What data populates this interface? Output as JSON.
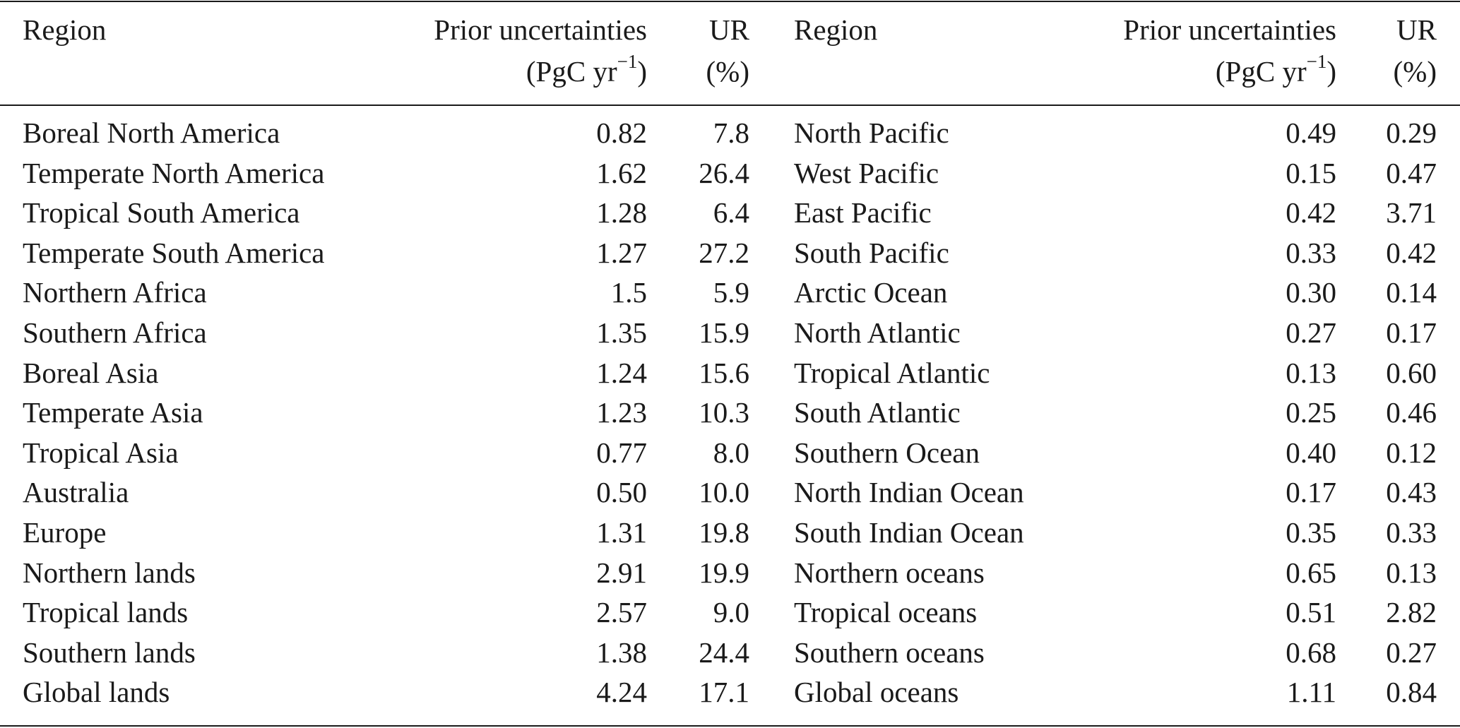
{
  "header": {
    "region": "Region",
    "prior_line1": "Prior uncertainties",
    "prior_line2_pre": "(PgC yr",
    "prior_line2_sup": "−1",
    "prior_line2_post": ")",
    "ur_line1": "UR",
    "ur_line2": "(%)"
  },
  "rows": [
    {
      "region1": "Boreal North America",
      "prior1": "0.82",
      "ur1": "7.8",
      "region2": "North Pacific",
      "prior2": "0.49",
      "ur2": "0.29"
    },
    {
      "region1": "Temperate North America",
      "prior1": "1.62",
      "ur1": "26.4",
      "region2": "West Pacific",
      "prior2": "0.15",
      "ur2": "0.47"
    },
    {
      "region1": "Tropical South America",
      "prior1": "1.28",
      "ur1": "6.4",
      "region2": "East Pacific",
      "prior2": "0.42",
      "ur2": "3.71"
    },
    {
      "region1": "Temperate South America",
      "prior1": "1.27",
      "ur1": "27.2",
      "region2": "South Pacific",
      "prior2": "0.33",
      "ur2": "0.42"
    },
    {
      "region1": "Northern Africa",
      "prior1": "1.5",
      "ur1": "5.9",
      "region2": "Arctic Ocean",
      "prior2": "0.30",
      "ur2": "0.14"
    },
    {
      "region1": "Southern Africa",
      "prior1": "1.35",
      "ur1": "15.9",
      "region2": "North Atlantic",
      "prior2": "0.27",
      "ur2": "0.17"
    },
    {
      "region1": "Boreal Asia",
      "prior1": "1.24",
      "ur1": "15.6",
      "region2": "Tropical Atlantic",
      "prior2": "0.13",
      "ur2": "0.60"
    },
    {
      "region1": "Temperate Asia",
      "prior1": "1.23",
      "ur1": "10.3",
      "region2": "South Atlantic",
      "prior2": "0.25",
      "ur2": "0.46"
    },
    {
      "region1": "Tropical Asia",
      "prior1": "0.77",
      "ur1": "8.0",
      "region2": "Southern Ocean",
      "prior2": "0.40",
      "ur2": "0.12"
    },
    {
      "region1": "Australia",
      "prior1": "0.50",
      "ur1": "10.0",
      "region2": "North Indian Ocean",
      "prior2": "0.17",
      "ur2": "0.43"
    },
    {
      "region1": "Europe",
      "prior1": "1.31",
      "ur1": "19.8",
      "region2": "South Indian Ocean",
      "prior2": "0.35",
      "ur2": "0.33"
    },
    {
      "region1": "Northern lands",
      "prior1": "2.91",
      "ur1": "19.9",
      "region2": "Northern oceans",
      "prior2": "0.65",
      "ur2": "0.13"
    },
    {
      "region1": "Tropical lands",
      "prior1": "2.57",
      "ur1": "9.0",
      "region2": "Tropical oceans",
      "prior2": "0.51",
      "ur2": "2.82"
    },
    {
      "region1": "Southern lands",
      "prior1": "1.38",
      "ur1": "24.4",
      "region2": "Southern oceans",
      "prior2": "0.68",
      "ur2": "0.27"
    },
    {
      "region1": "Global lands",
      "prior1": "4.24",
      "ur1": "17.1",
      "region2": "Global oceans",
      "prior2": "1.11",
      "ur2": "0.84"
    }
  ]
}
